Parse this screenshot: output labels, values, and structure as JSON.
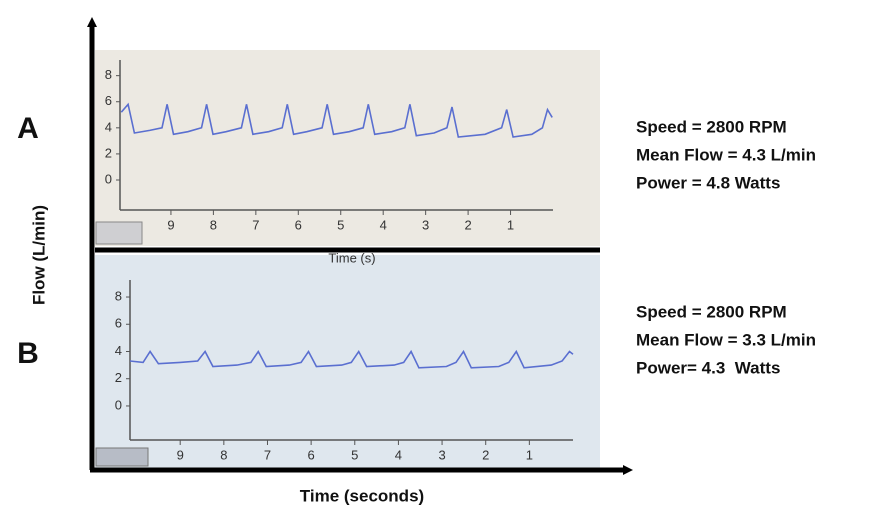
{
  "figure": {
    "ylabel": "Flow (L/min)",
    "xlabel": "Time (seconds)"
  },
  "chart_data": [
    {
      "type": "line",
      "panel": "A",
      "xlabel": "Time (s)",
      "annotations": [
        "Speed = 2800 RPM",
        "Mean Flow = 4.3 L/min",
        "Power = 4.8 Watts"
      ],
      "xlim": [
        10.2,
        0
      ],
      "xticks": [
        9,
        8,
        7,
        6,
        5,
        4,
        3,
        2,
        1
      ],
      "ylim": [
        -2.3,
        9.2
      ],
      "yticks": [
        8,
        6,
        4,
        2,
        0
      ],
      "x": [
        10.17,
        10.01,
        9.86,
        9.5,
        9.21,
        9.09,
        8.94,
        8.6,
        8.28,
        8.16,
        8.01,
        7.7,
        7.34,
        7.22,
        7.07,
        6.7,
        6.38,
        6.26,
        6.11,
        5.8,
        5.44,
        5.32,
        5.17,
        4.8,
        4.47,
        4.35,
        4.2,
        3.8,
        3.49,
        3.37,
        3.22,
        2.8,
        2.5,
        2.38,
        2.23,
        1.6,
        1.21,
        1.09,
        0.94,
        0.5,
        0.25,
        0.13,
        0.02
      ],
      "series": [
        {
          "color": "#5a6fd0",
          "values": [
            5.2,
            5.8,
            3.6,
            3.8,
            4.0,
            5.8,
            3.5,
            3.7,
            4.0,
            5.8,
            3.5,
            3.7,
            4.0,
            5.8,
            3.5,
            3.7,
            4.0,
            5.8,
            3.5,
            3.7,
            4.0,
            5.8,
            3.5,
            3.7,
            4.0,
            5.8,
            3.5,
            3.7,
            4.0,
            5.8,
            3.4,
            3.6,
            4.0,
            5.6,
            3.3,
            3.5,
            4.0,
            5.4,
            3.3,
            3.5,
            4.0,
            5.4,
            4.8
          ]
        }
      ]
    },
    {
      "type": "line",
      "panel": "B",
      "annotations": [
        "Speed = 2800 RPM",
        "Mean Flow = 3.3 L/min",
        "Power= 4.3  Watts"
      ],
      "xlim": [
        10.15,
        0
      ],
      "xticks": [
        9,
        8,
        7,
        6,
        5,
        4,
        3,
        2,
        1
      ],
      "ylim": [
        -2.5,
        9.25
      ],
      "yticks": [
        8,
        6,
        4,
        2,
        0
      ],
      "x": [
        10.15,
        9.85,
        9.69,
        9.5,
        9.0,
        8.6,
        8.43,
        8.25,
        7.7,
        7.38,
        7.21,
        7.03,
        6.5,
        6.23,
        6.06,
        5.88,
        5.3,
        5.08,
        4.91,
        4.73,
        4.1,
        3.88,
        3.71,
        3.53,
        2.9,
        2.68,
        2.51,
        2.33,
        1.7,
        1.47,
        1.3,
        1.12,
        0.5,
        0.25,
        0.08,
        0.0
      ],
      "series": [
        {
          "color": "#5a6fd0",
          "values": [
            3.3,
            3.2,
            4.0,
            3.1,
            3.2,
            3.3,
            4.0,
            2.9,
            3.0,
            3.2,
            4.0,
            2.9,
            3.0,
            3.2,
            4.0,
            2.9,
            3.0,
            3.2,
            4.0,
            2.9,
            3.0,
            3.2,
            4.0,
            2.8,
            2.9,
            3.2,
            4.0,
            2.8,
            2.9,
            3.2,
            4.0,
            2.8,
            3.0,
            3.3,
            4.0,
            3.8
          ]
        }
      ]
    }
  ]
}
